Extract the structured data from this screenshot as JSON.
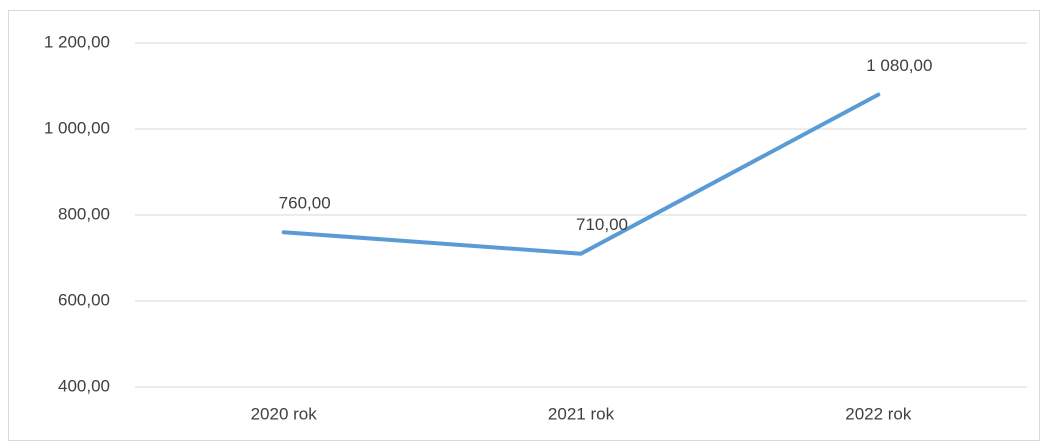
{
  "chart_data": {
    "type": "line",
    "categories": [
      "2020 rok",
      "2021 rok",
      "2022 rok"
    ],
    "series": [
      {
        "name": "Series 1",
        "color": "#5b9bd5",
        "values": [
          760,
          710,
          1080
        ],
        "value_labels": [
          "760,00",
          "710,00",
          "1 080,00"
        ]
      }
    ],
    "ylim": [
      400,
      1200
    ],
    "yticks": [
      {
        "value": 400,
        "label": "400,00"
      },
      {
        "value": 600,
        "label": "600,00"
      },
      {
        "value": 800,
        "label": "800,00"
      },
      {
        "value": 1000,
        "label": "1 000,00"
      },
      {
        "value": 1200,
        "label": "1 200,00"
      }
    ],
    "grid": true
  }
}
